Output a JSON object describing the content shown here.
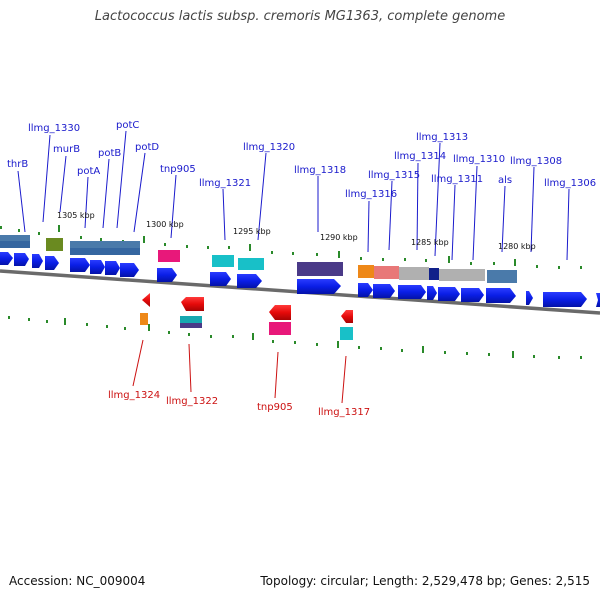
{
  "title": "Lactococcus lactis subsp. cremoris MG1363, complete genome",
  "footer": {
    "accession": "Accession: NC_009004",
    "summary": "Topology: circular; Length: 2,529,478 bp; Genes: 2,515"
  },
  "colors": {
    "forward_label": "#1a1acc",
    "reverse_label": "#cc1111",
    "forward_cds": "#0a1ee6",
    "reverse_cds": "#e60a0a",
    "tick": "#2a8a2a",
    "backbone": "#6a6a6a"
  },
  "scale_labels": [
    "1305 kbp",
    "1300 kbp",
    "1295 kbp",
    "1290 kbp",
    "1285 kbp",
    "1280 kbp"
  ],
  "forward_labels": [
    "thrB",
    "llmg_1330",
    "murB",
    "potA",
    "potB",
    "potC",
    "potD",
    "tnp905",
    "llmg_1321",
    "llmg_1320",
    "llmg_1318",
    "llmg_1316",
    "llmg_1315",
    "llmg_1314",
    "llmg_1313",
    "llmg_1311",
    "llmg_1310",
    "als",
    "llmg_1308",
    "llmg_1306"
  ],
  "reverse_labels": [
    "llmg_1324",
    "llmg_1322",
    "tnp905",
    "llmg_1317"
  ]
}
